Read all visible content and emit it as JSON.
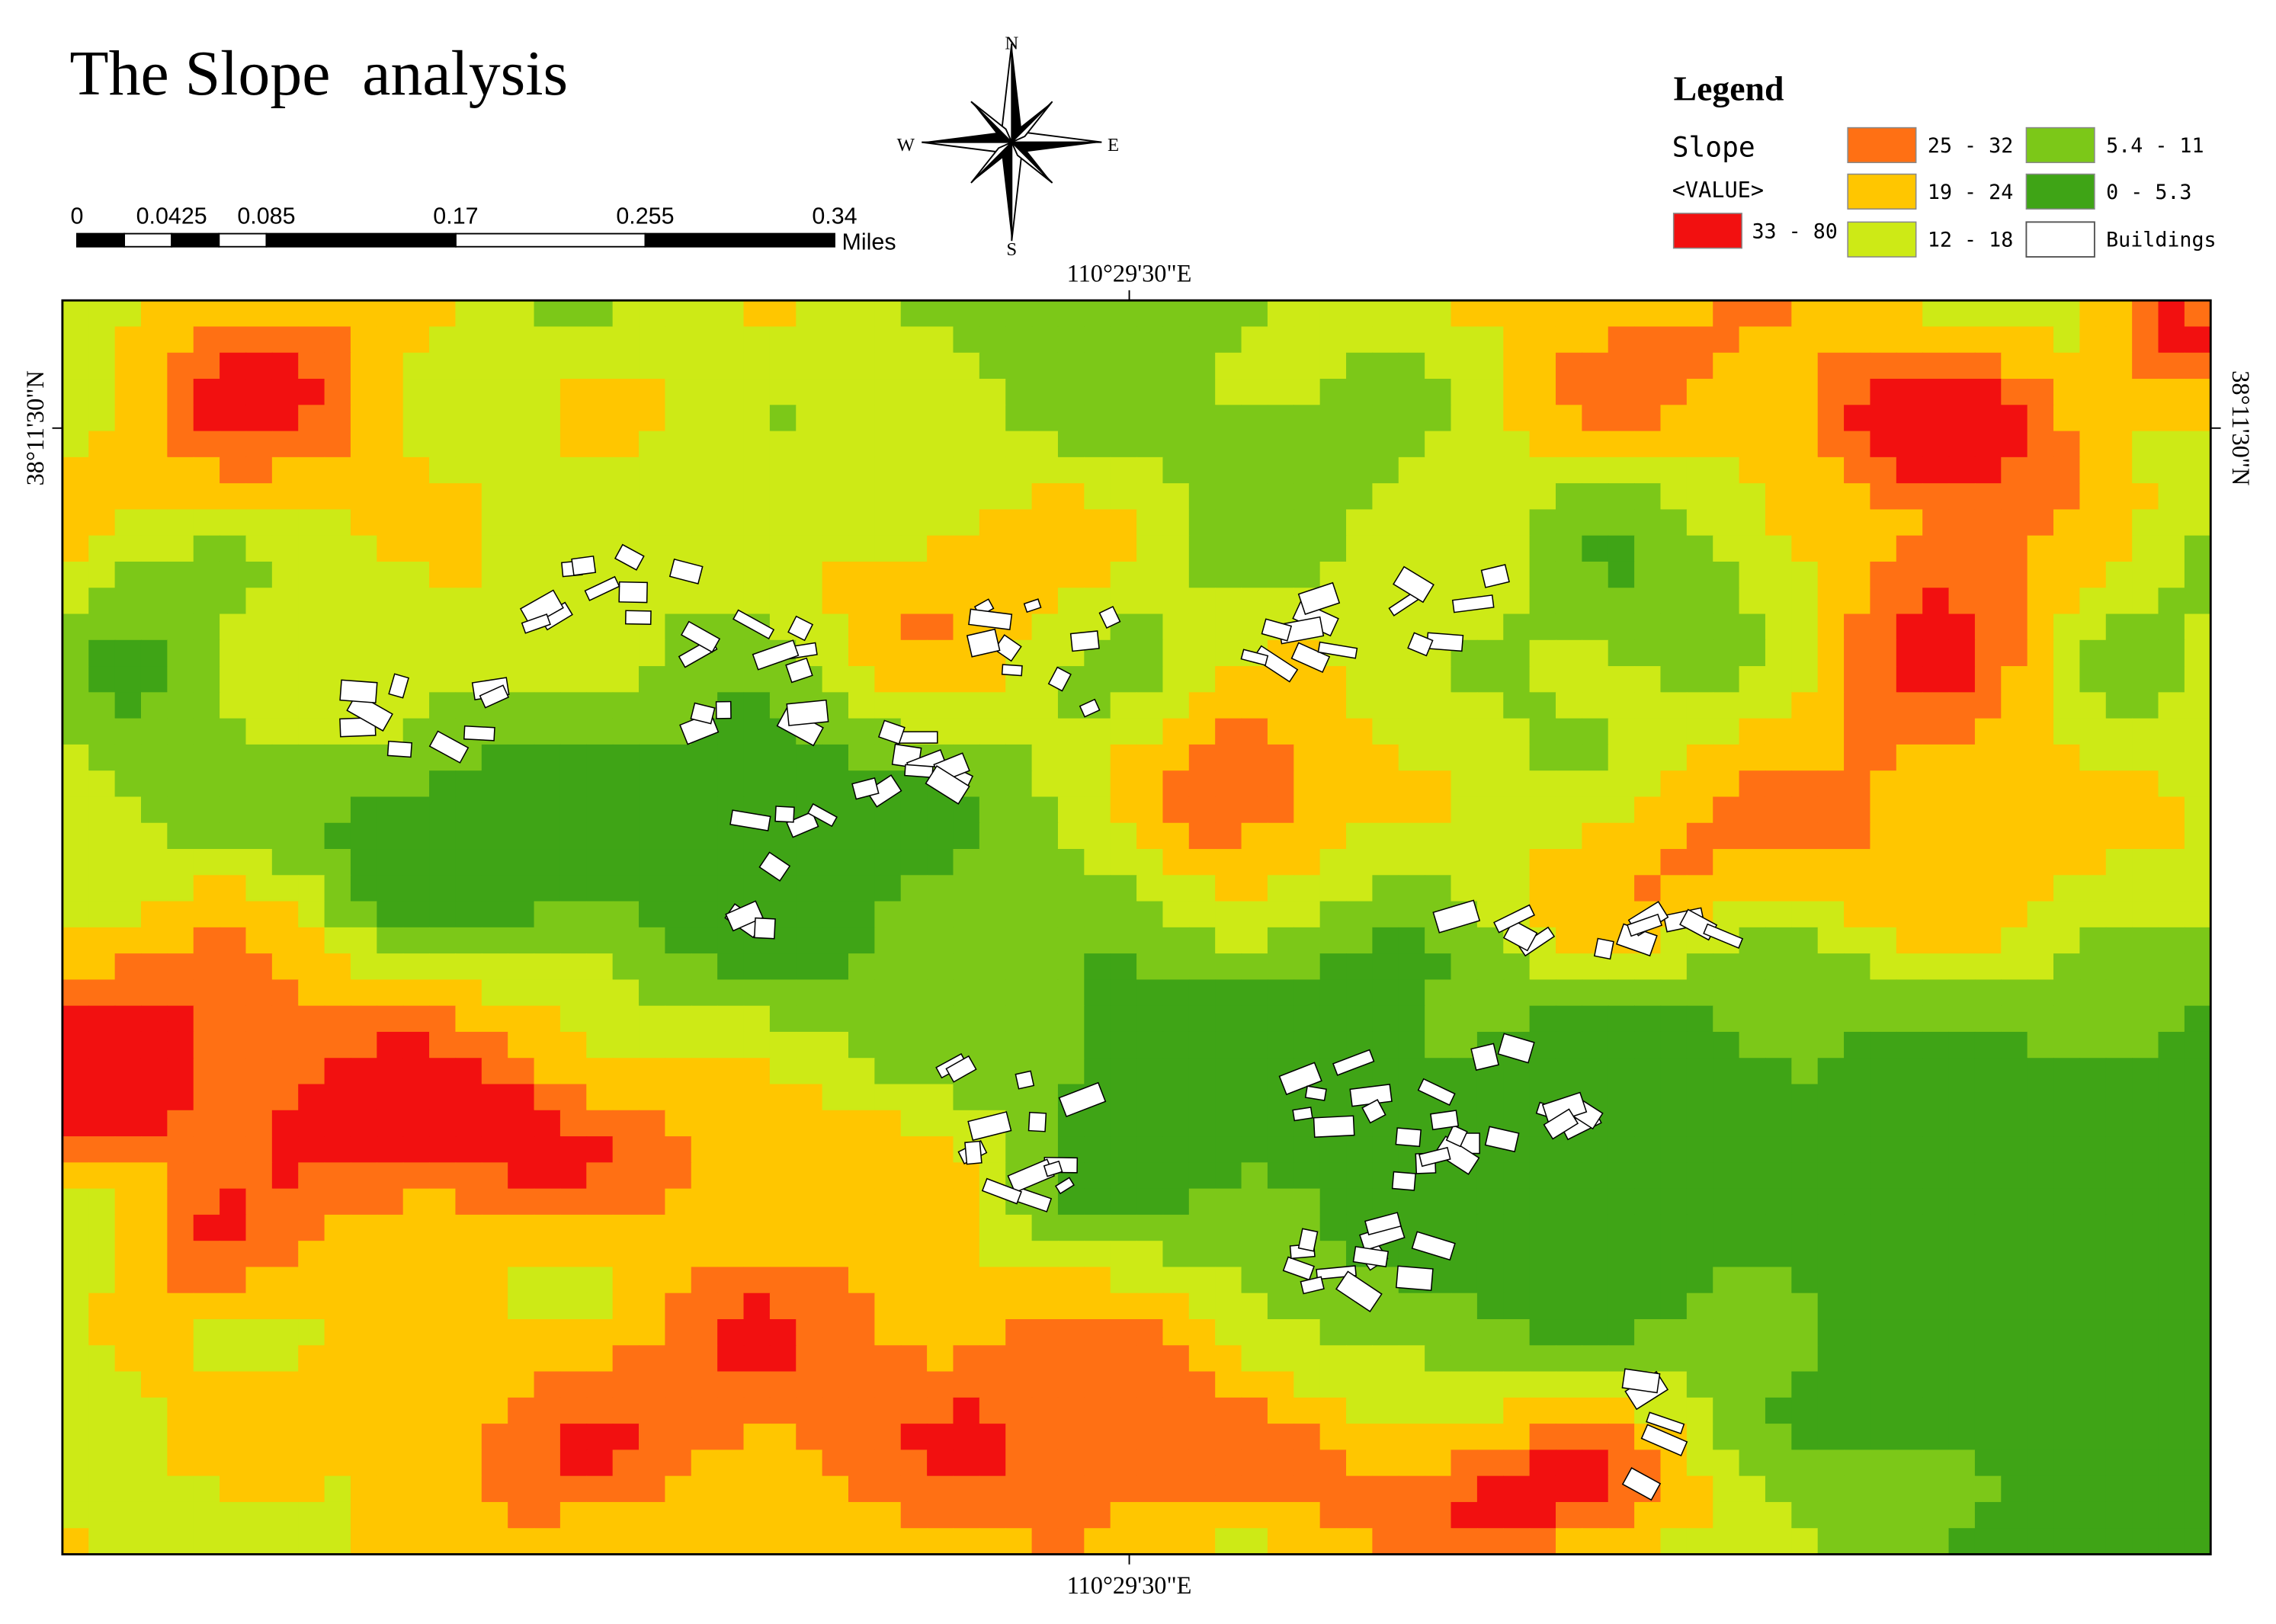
{
  "title": "The Slope  analysis",
  "compass": {
    "n": "N",
    "e": "E",
    "s": "S",
    "w": "W"
  },
  "scale_bar": {
    "ticks": [
      0,
      0.0425,
      0.085,
      0.17,
      0.255,
      0.34
    ],
    "unit": "Miles"
  },
  "graticule": {
    "top": "110°29'30\"E",
    "bottom": "110°29'30\"E",
    "left": "38°11'30\"N",
    "right": "38°11'30\"N"
  },
  "legend": {
    "title": "Legend",
    "layer": "Slope",
    "field": "<VALUE>",
    "classes": [
      {
        "label": "33 - 80",
        "color": "#f21010"
      },
      {
        "label": "25 - 32",
        "color": "#ff7014"
      },
      {
        "label": "19 - 24",
        "color": "#ffc600"
      },
      {
        "label": "12 - 18",
        "color": "#cdea16"
      },
      {
        "label": "5.4 - 11",
        "color": "#7cc818"
      },
      {
        "label": "0 - 5.3",
        "color": "#3fa416"
      }
    ],
    "buildings": {
      "label": "Buildings",
      "color": "#ffffff"
    }
  }
}
